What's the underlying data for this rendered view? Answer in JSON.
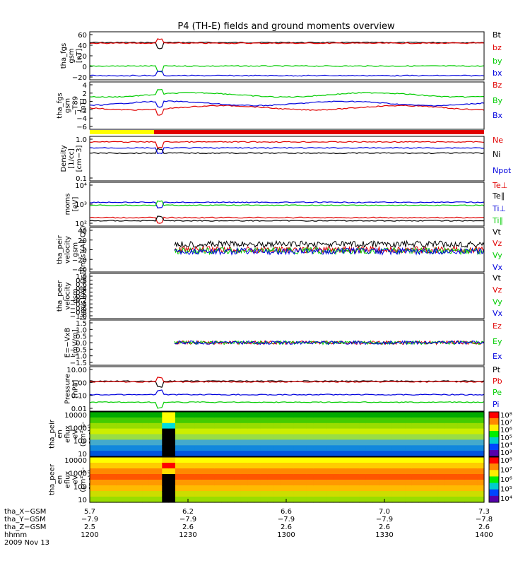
{
  "title": "P4 (TH-E) fields and ground moments overview",
  "colors": {
    "black": "#000000",
    "red": "#e00000",
    "green": "#00cc00",
    "blue": "#0000dd",
    "yellow": "#ffff00"
  },
  "chart_data": [
    {
      "type": "line",
      "ylabel": [
        "tha_fgs",
        "gsm",
        "[nT]"
      ],
      "yticks": [
        "60",
        "40",
        "20",
        "0",
        "−20"
      ],
      "ylim": [
        -20,
        60
      ],
      "series": [
        {
          "name": "Bt",
          "color": "#000000",
          "level": 42
        },
        {
          "name": "bz",
          "color": "#e00000",
          "level": 41
        },
        {
          "name": "by",
          "color": "#00cc00",
          "level": 3
        },
        {
          "name": "bx",
          "color": "#0000dd",
          "level": -13
        }
      ]
    },
    {
      "type": "line",
      "ylabel": [
        "tha_fgs",
        "gsm",
        "−T89",
        "[nT]"
      ],
      "yticks": [
        "4",
        "2",
        "0",
        "−2",
        "−4",
        "−6"
      ],
      "ylim": [
        -7,
        4
      ],
      "series": [
        {
          "name": "Bz",
          "color": "#e00000",
          "level": -2
        },
        {
          "name": "By",
          "color": "#00cc00",
          "level": 1
        },
        {
          "name": "Bx",
          "color": "#0000dd",
          "level": -1
        }
      ]
    },
    {
      "type": "line",
      "ylabel": [
        "Density",
        "[1/cc]",
        "[cm−3]"
      ],
      "yticks": [
        "1.0",
        "0.1"
      ],
      "log": true,
      "ylim": [
        0.1,
        1.0
      ],
      "series": [
        {
          "name": "Ne",
          "color": "#e00000",
          "level": 0.75
        },
        {
          "name": "Ni",
          "color": "#000000",
          "level": 0.42
        },
        {
          "name": "Npot",
          "color": "#0000dd",
          "level": 0.55
        }
      ]
    },
    {
      "type": "line",
      "ylabel": [
        "moms",
        "[eV]"
      ],
      "yticks": [
        "10⁴",
        "10³",
        "10²"
      ],
      "log": true,
      "ylim": [
        100,
        30000
      ],
      "series": [
        {
          "name": "Te⊥",
          "color": "#e00000",
          "level": 300
        },
        {
          "name": "Te∥",
          "color": "#000000",
          "level": 200
        },
        {
          "name": "Ti⊥",
          "color": "#0000dd",
          "level": 2200
        },
        {
          "name": "Ti∥",
          "color": "#00cc00",
          "level": 1500
        }
      ]
    },
    {
      "type": "line",
      "ylabel": [
        "tha_peir",
        "velocity",
        "gsm",
        "[km/s](All Qs)"
      ],
      "yticks": [
        "40",
        "20",
        "0",
        "−20",
        "−40"
      ],
      "ylim": [
        -40,
        40
      ],
      "series": [
        {
          "name": "Vt",
          "color": "#000000",
          "level": 10
        },
        {
          "name": "Vz",
          "color": "#e00000",
          "level": 0
        },
        {
          "name": "Vy",
          "color": "#00cc00",
          "level": -2
        },
        {
          "name": "Vx",
          "color": "#0000dd",
          "level": -3
        }
      ]
    },
    {
      "type": "line",
      "ylabel": [
        "tha_peer",
        "velocity",
        "gsm",
        "[km/s](All Qs)"
      ],
      "yticks": [
        "1.0",
        "0.8",
        "0.6",
        "0.4",
        "0.2",
        "0.0",
        "−0.2",
        "−0.4",
        "−0.6",
        "−0.8",
        "−1.0"
      ],
      "ylim": [
        -1,
        1
      ],
      "series": [
        {
          "name": "Vt",
          "color": "#000000"
        },
        {
          "name": "Vz",
          "color": "#e00000"
        },
        {
          "name": "Vy",
          "color": "#00cc00"
        },
        {
          "name": "Vx",
          "color": "#0000dd"
        }
      ]
    },
    {
      "type": "line",
      "ylabel": [
        "E=−VxB",
        "[mV/m]"
      ],
      "yticks": [
        "1.5",
        "1.0",
        "0.5",
        "0.0",
        "−0.5",
        "−1.0",
        "−1.5"
      ],
      "ylim": [
        -1.5,
        1.5
      ],
      "series": [
        {
          "name": "Ez",
          "color": "#e00000",
          "level": 0
        },
        {
          "name": "Ey",
          "color": "#00cc00",
          "level": 0
        },
        {
          "name": "Ex",
          "color": "#0000dd",
          "level": 0
        }
      ]
    },
    {
      "type": "line",
      "ylabel": [
        "Pressure",
        "[nPa]"
      ],
      "yticks": [
        "10.00",
        "1.00",
        "0.10",
        "0.01"
      ],
      "log": true,
      "ylim": [
        0.01,
        10
      ],
      "series": [
        {
          "name": "Pt",
          "color": "#000000",
          "level": 1.05
        },
        {
          "name": "Pb",
          "color": "#e00000",
          "level": 0.95
        },
        {
          "name": "Pe",
          "color": "#00cc00",
          "level": 0.04
        },
        {
          "name": "Pi",
          "color": "#0000dd",
          "level": 0.13
        }
      ]
    },
    {
      "type": "heatmap",
      "ylabel": [
        "tha_peir",
        "en",
        "eflux",
        "eV",
        "(cm²-s-",
        "sr-eV)"
      ],
      "yticks": [
        "10000",
        "1000",
        "100",
        "10"
      ],
      "colorbar": [
        "10⁸",
        "10⁷",
        "10⁶",
        "10⁵",
        "10⁴",
        "10³"
      ]
    },
    {
      "type": "heatmap",
      "ylabel": [
        "tha_peer",
        "en",
        "eflux",
        "eV",
        "(cm²-s-",
        "sr-eV)"
      ],
      "yticks": [
        "10000",
        "1000",
        "100",
        "10"
      ],
      "colorbar": [
        "10⁸",
        "10⁷",
        "10⁶",
        "10⁵",
        "10⁴"
      ]
    }
  ],
  "xaxis": {
    "rows": [
      {
        "label": "tha_X−GSM",
        "values": [
          "5.7",
          "6.2",
          "6.6",
          "7.0",
          "7.3"
        ]
      },
      {
        "label": "tha_Y−GSM",
        "values": [
          "−7.9",
          "−7.9",
          "−7.9",
          "−7.9",
          "−7.8"
        ]
      },
      {
        "label": "tha_Z−GSM",
        "values": [
          "2.5",
          "2.6",
          "2.6",
          "2.6",
          "2.6"
        ]
      },
      {
        "label": "hhmm",
        "values": [
          "1200",
          "1230",
          "1300",
          "1330",
          "1400"
        ]
      }
    ],
    "date": "2009 Nov 13"
  }
}
